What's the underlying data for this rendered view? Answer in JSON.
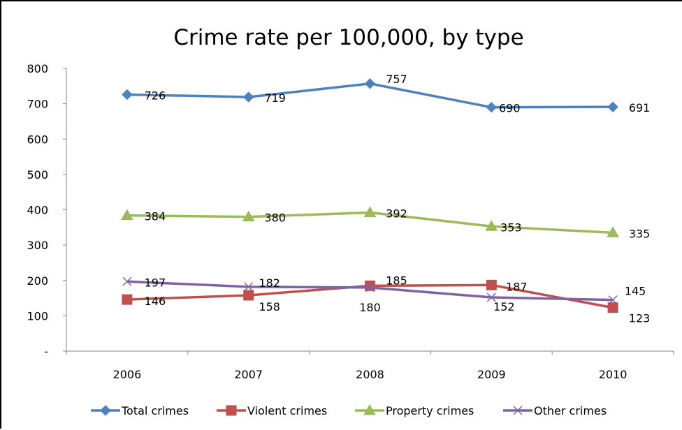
{
  "chart_data": {
    "type": "line",
    "title": "Crime rate per 100,000, by type",
    "xlabel": "",
    "ylabel": "",
    "categories": [
      "2006",
      "2007",
      "2008",
      "2009",
      "2010"
    ],
    "ylim": [
      0,
      800
    ],
    "yticks": [
      0,
      100,
      200,
      300,
      400,
      500,
      600,
      700,
      800
    ],
    "ytick_labels": [
      "-",
      "100",
      "200",
      "300",
      "400",
      "500",
      "600",
      "700",
      "800"
    ],
    "grid": false,
    "legend_position": "bottom",
    "series": [
      {
        "name": "Total crimes",
        "color": "#4f81bd",
        "marker": "diamond",
        "values": [
          726,
          719,
          757,
          690,
          691
        ]
      },
      {
        "name": "Violent crimes",
        "color": "#c0504d",
        "marker": "square",
        "values": [
          146,
          158,
          185,
          187,
          123
        ]
      },
      {
        "name": "Property crimes",
        "color": "#9bbb59",
        "marker": "triangle",
        "values": [
          384,
          380,
          392,
          353,
          335
        ]
      },
      {
        "name": "Other crimes",
        "color": "#8064a2",
        "marker": "x",
        "values": [
          197,
          182,
          180,
          152,
          145
        ]
      }
    ]
  }
}
